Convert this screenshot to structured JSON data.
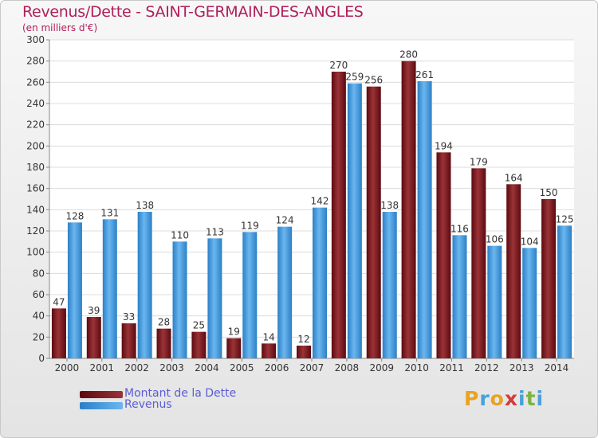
{
  "colors": {
    "dette_dark": "#5c0a10",
    "dette_light": "#9a3337",
    "revenus_dark": "#2b80c6",
    "revenus_light": "#6bb6ef",
    "title": "#b01e5a",
    "legend_text": "#5b5bd6"
  },
  "chart_data": {
    "type": "bar",
    "title": "Revenus/Dette - SAINT-GERMAIN-DES-ANGLES",
    "subtitle": "(en milliers d'€)",
    "xlabel": "",
    "ylabel": "",
    "ylim": [
      0,
      300
    ],
    "yticks": [
      0,
      20,
      40,
      60,
      80,
      100,
      120,
      140,
      160,
      180,
      200,
      220,
      240,
      260,
      280,
      300
    ],
    "grid": true,
    "legend_position": "bottom-left",
    "categories": [
      "2000",
      "2001",
      "2002",
      "2003",
      "2004",
      "2005",
      "2006",
      "2007",
      "2008",
      "2009",
      "2010",
      "2011",
      "2012",
      "2013",
      "2014"
    ],
    "series": [
      {
        "name": "Montant de la Dette",
        "values": [
          47,
          39,
          33,
          28,
          25,
          19,
          14,
          12,
          270,
          256,
          280,
          194,
          179,
          164,
          150
        ]
      },
      {
        "name": "Revenus",
        "values": [
          128,
          131,
          138,
          110,
          113,
          119,
          124,
          142,
          259,
          138,
          261,
          116,
          106,
          104,
          125
        ]
      }
    ]
  },
  "logo": {
    "letters": [
      "P",
      "r",
      "o",
      "x",
      "i",
      "t",
      "i"
    ],
    "colors": [
      "#e9a31f",
      "#4aa0d8",
      "#e9a31f",
      "#d23c3c",
      "#4aa0d8",
      "#7cb342",
      "#4aa0d8"
    ]
  }
}
